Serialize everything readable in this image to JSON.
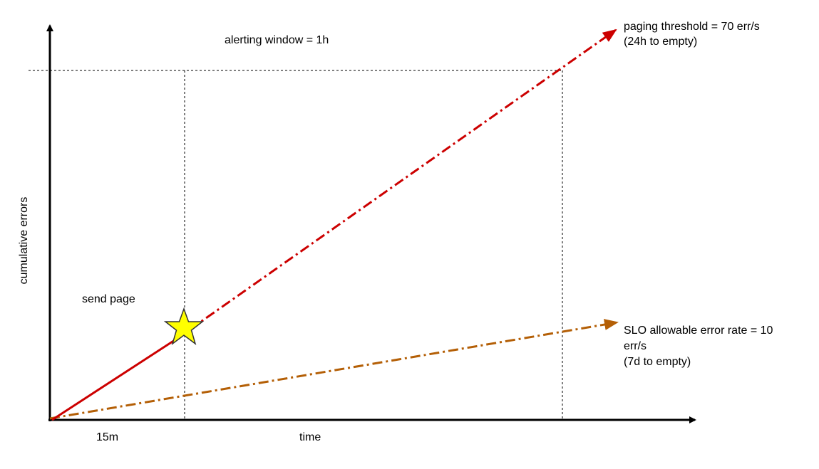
{
  "title": "alerting window = 1h",
  "y_axis_label": "cumulative errors",
  "x_axis_label": "time",
  "x_marker_label": "15m",
  "event_label": "send page",
  "paging_line": {
    "lines": [
      "paging threshold = 70 err/s",
      "(24h to empty)"
    ]
  },
  "slo_line": {
    "lines": [
      "SLO allowable error rate = 10",
      "err/s",
      "(7d to empty)"
    ]
  }
}
